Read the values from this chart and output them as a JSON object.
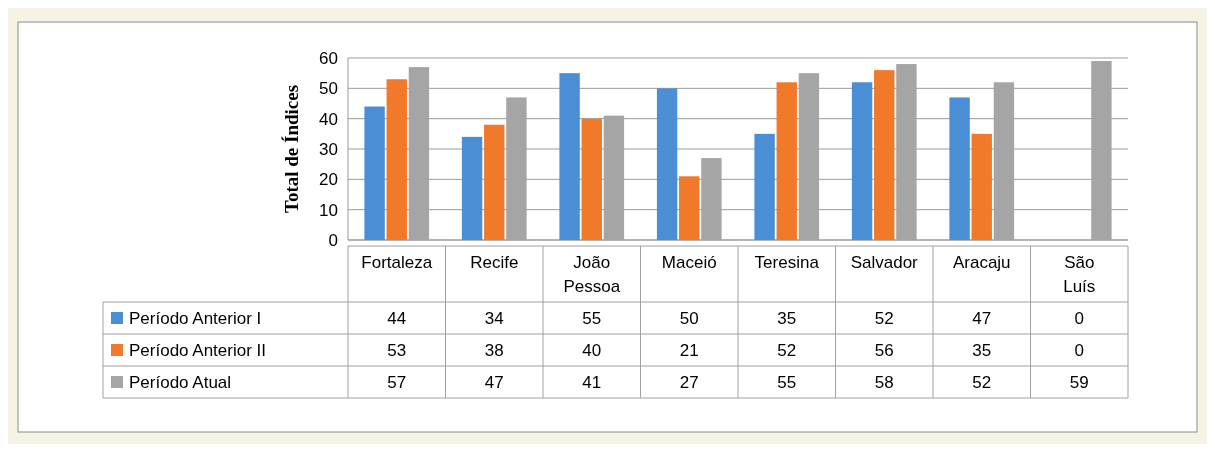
{
  "chart_data": {
    "type": "bar",
    "ylabel": "Total de Índices",
    "categories": [
      "Fortaleza",
      "Recife",
      "João Pessoa",
      "Maceió",
      "Teresina",
      "Salvador",
      "Aracaju",
      "São Luís"
    ],
    "series": [
      {
        "name": "Período Anterior I",
        "color": "#4a8fd6",
        "values": [
          44,
          34,
          55,
          50,
          35,
          52,
          47,
          0
        ]
      },
      {
        "name": "Período Anterior II",
        "color": "#f0792a",
        "values": [
          53,
          38,
          40,
          21,
          52,
          56,
          35,
          0
        ]
      },
      {
        "name": "Período Atual",
        "color": "#a5a5a5",
        "values": [
          57,
          47,
          41,
          27,
          55,
          58,
          52,
          59
        ]
      }
    ],
    "ylim": [
      0,
      60
    ],
    "yticks": [
      0,
      10,
      20,
      30,
      40,
      50,
      60
    ],
    "grid": "y",
    "legend": "bottom left",
    "data_labels": true
  }
}
